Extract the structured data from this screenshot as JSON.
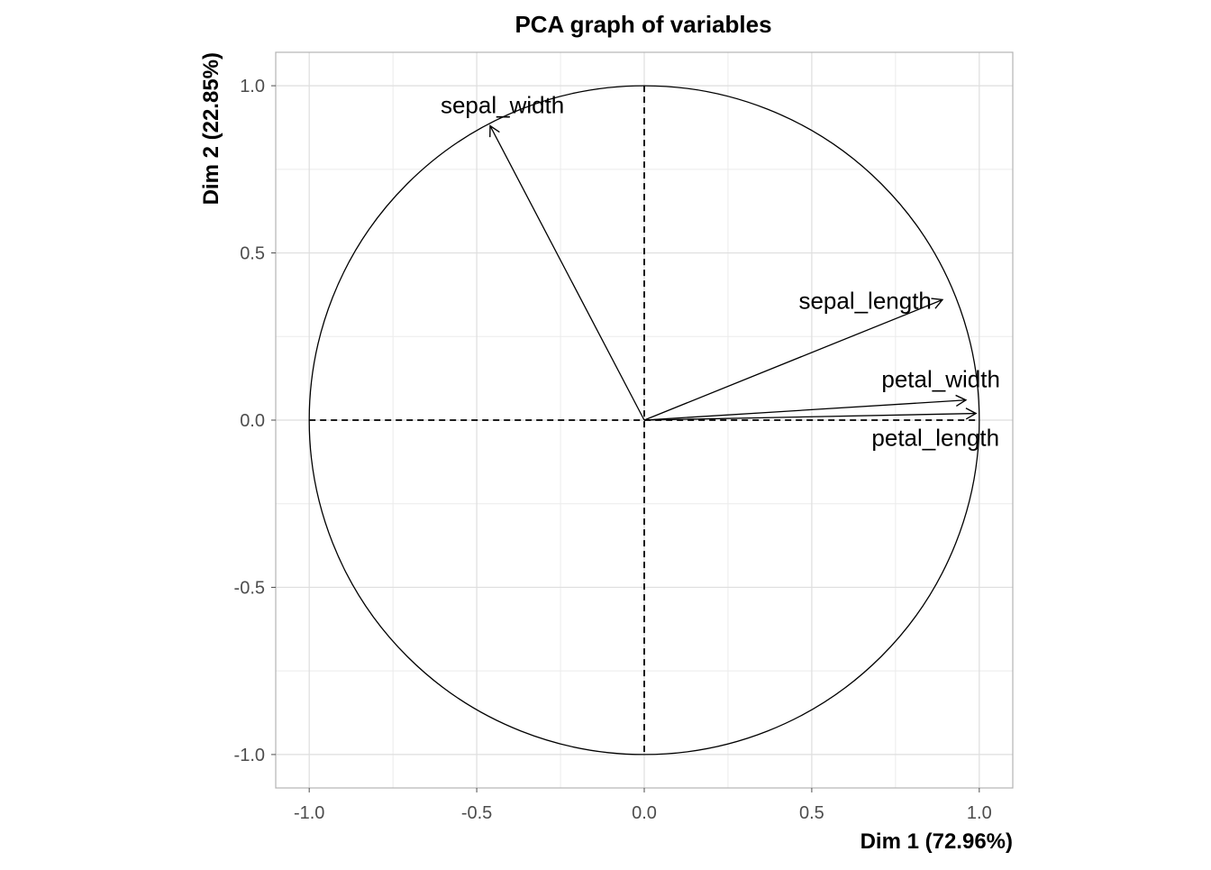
{
  "chart_data": {
    "type": "pca-variables",
    "title": "PCA graph of variables",
    "xlabel": "Dim 1 (72.96%)",
    "ylabel": "Dim 2 (22.85%)",
    "xlim": [
      -1.1,
      1.1
    ],
    "ylim": [
      -1.1,
      1.1
    ],
    "x_ticks": [
      -1.0,
      -0.5,
      0.0,
      0.5,
      1.0
    ],
    "y_ticks": [
      -1.0,
      -0.5,
      0.0,
      0.5,
      1.0
    ],
    "x_tick_labels": [
      "-1.0",
      "-0.5",
      "0.0",
      "0.5",
      "1.0"
    ],
    "y_tick_labels": [
      "-1.0",
      "-0.5",
      "0.0",
      "0.5",
      "1.0"
    ],
    "grid": true,
    "correlation_circle": {
      "radius": 1.0
    },
    "variables": [
      {
        "name": "sepal_length",
        "x": 0.89,
        "y": 0.36
      },
      {
        "name": "sepal_width",
        "x": -0.46,
        "y": 0.88
      },
      {
        "name": "petal_length",
        "x": 0.99,
        "y": 0.02
      },
      {
        "name": "petal_width",
        "x": 0.96,
        "y": 0.06
      }
    ]
  }
}
